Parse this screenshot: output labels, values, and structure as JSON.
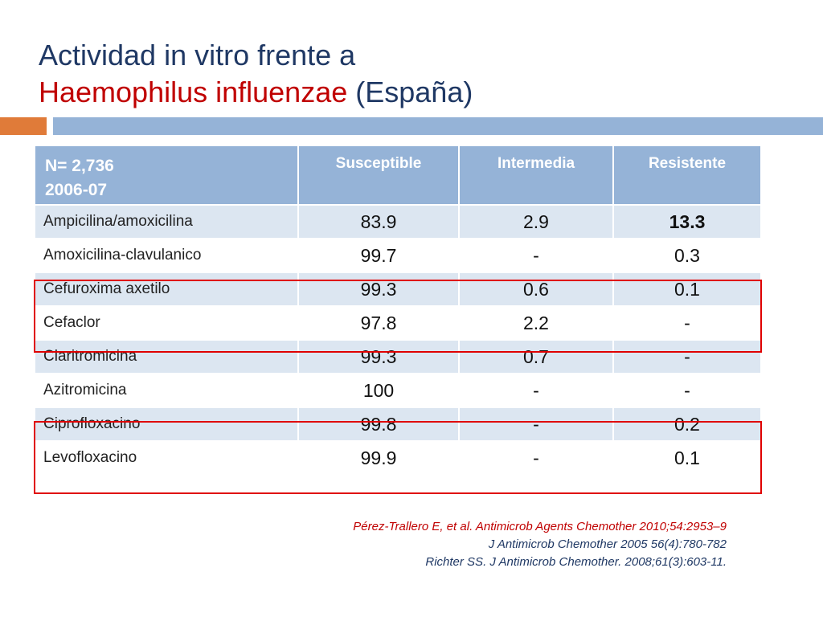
{
  "title": {
    "line1": "Actividad in vitro frente a",
    "line2_red": "Haemophilus influenzae",
    "line2_rest": "(España)"
  },
  "table": {
    "header": {
      "n_label": "N= 2,736",
      "period": "2006-07",
      "columns": [
        "Susceptible",
        "Intermedia",
        "Resistente"
      ]
    },
    "rows": [
      {
        "drug": "Ampicilina/amoxicilina",
        "values": [
          "83.9",
          "2.9",
          "13.3"
        ]
      },
      {
        "drug": "Amoxicilina-clavulanico",
        "values": [
          "99.7",
          "-",
          "0.3"
        ]
      },
      {
        "drug": "Cefuroxima axetilo",
        "values": [
          "99.3",
          "0.6",
          "0.1"
        ]
      },
      {
        "drug": "Cefaclor",
        "values": [
          "97.8",
          "2.2",
          "-"
        ]
      },
      {
        "drug": "Claritromicina",
        "values": [
          "99.3",
          "0.7",
          "-"
        ]
      },
      {
        "drug": "Azitromicina",
        "values": [
          "100",
          "-",
          "-"
        ]
      },
      {
        "drug": "Ciprofloxacino",
        "values": [
          "99.8",
          "-",
          "0.2"
        ]
      },
      {
        "drug": "Levofloxacino",
        "values": [
          "99.9",
          "-",
          "0.1"
        ]
      }
    ]
  },
  "references": [
    "Pérez-Trallero E, et al. Antimicrob Agents Chemother 2010;54:2953–9",
    "J Antimicrob Chemother  2005 56(4):780-782",
    "Richter SS. J Antimicrob Chemother. 2008;61(3):603-11."
  ],
  "colors": {
    "title": "#1f3864",
    "title_accent": "#c00000",
    "header_bg": "#95b3d7",
    "row_alt_bg": "#dce6f1",
    "highlight_box": "#e00000",
    "accent_bar": "#e07b39"
  }
}
